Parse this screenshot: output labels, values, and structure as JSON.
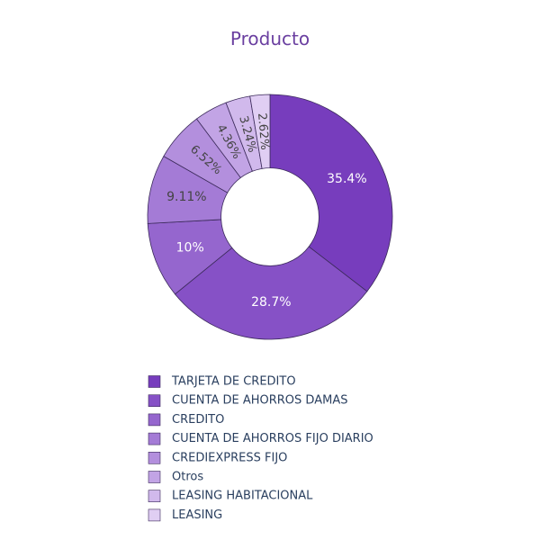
{
  "chart_data": {
    "type": "pie",
    "title": "Producto",
    "hole": 0.4,
    "direction": "clockwise",
    "start": "12 o'clock",
    "legend_position": "bottom",
    "slices": [
      {
        "label": "TARJETA DE CREDITO",
        "percent": 35.4,
        "percent_text": "35.4%",
        "color": "#773dbd",
        "text_color": "#ffffff",
        "label_orientation": "horizontal"
      },
      {
        "label": "CUENTA DE AHORROS DAMAS",
        "percent": 28.7,
        "percent_text": "28.7%",
        "color": "#8651c6",
        "text_color": "#ffffff",
        "label_orientation": "horizontal"
      },
      {
        "label": "CREDITO",
        "percent": 10,
        "percent_text": "10%",
        "color": "#9566ce",
        "text_color": "#ffffff",
        "label_orientation": "horizontal"
      },
      {
        "label": "CUENTA DE AHORROS FIJO DIARIO",
        "percent": 9.11,
        "percent_text": "9.11%",
        "color": "#a47bd6",
        "text_color": "#444444",
        "label_orientation": "horizontal"
      },
      {
        "label": "CREDIEXPRESS FIJO",
        "percent": 6.52,
        "percent_text": "6.52%",
        "color": "#b38fdd",
        "text_color": "#444444",
        "label_orientation": "radial"
      },
      {
        "label": "Otros",
        "percent": 4.36,
        "percent_text": "4.36%",
        "color": "#c2a4e5",
        "text_color": "#444444",
        "label_orientation": "radial"
      },
      {
        "label": "LEASING HABITACIONAL",
        "percent": 3.24,
        "percent_text": "3.24%",
        "color": "#d1b9ec",
        "text_color": "#444444",
        "label_orientation": "radial"
      },
      {
        "label": "LEASING",
        "percent": 2.62,
        "percent_text": "2.62%",
        "color": "#e0cef3",
        "text_color": "#444444",
        "label_orientation": "radial"
      }
    ]
  }
}
